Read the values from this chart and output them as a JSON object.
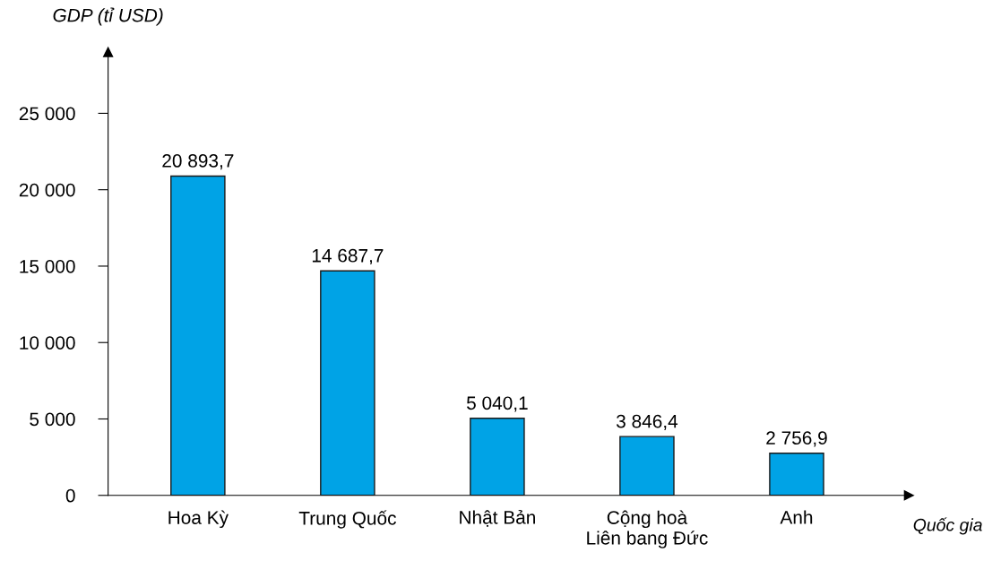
{
  "chart_data": {
    "type": "bar",
    "xlabel": "Quốc gia",
    "ylabel": "GDP (tỉ USD)",
    "categories": [
      "Hoa Kỳ",
      "Trung Quốc",
      "Nhật Bản",
      "Cộng hoà\nLiên bang Đức",
      "Anh"
    ],
    "values": [
      20893.7,
      14687.7,
      5040.1,
      3846.4,
      2756.9
    ],
    "value_labels": [
      "20 893,7",
      "14 687,7",
      "5 040,1",
      "3 846,4",
      "2 756,9"
    ],
    "color": "#00a3e6",
    "ylim": [
      0,
      29000
    ],
    "yticks": [
      {
        "value": 0,
        "label": "0"
      },
      {
        "value": 5000,
        "label": "5 000"
      },
      {
        "value": 10000,
        "label": "10 000"
      },
      {
        "value": 15000,
        "label": "15 000"
      },
      {
        "value": 20000,
        "label": "20 000"
      },
      {
        "value": 25000,
        "label": "25 000"
      }
    ],
    "grid": false,
    "legend": false
  }
}
